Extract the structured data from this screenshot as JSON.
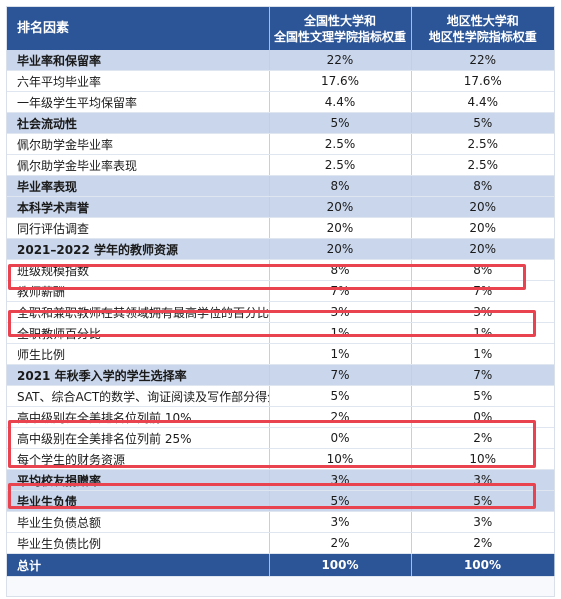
{
  "header": {
    "col1": "排名因素",
    "col2_line1": "全国性大学和",
    "col2_line2": "全国性文理学院指标权重",
    "col3_line1": "地区性大学和",
    "col3_line2": "地区性学院指标权重"
  },
  "rows": [
    {
      "name": "毕业率和保留率",
      "national": "22%",
      "regional": "22%",
      "kind": "section"
    },
    {
      "name": "六年平均毕业率",
      "national": "17.6%",
      "regional": "17.6%",
      "kind": "item"
    },
    {
      "name": "一年级学生平均保留率",
      "national": "4.4%",
      "regional": "4.4%",
      "kind": "item"
    },
    {
      "name": "社会流动性",
      "national": "5%",
      "regional": "5%",
      "kind": "section"
    },
    {
      "name": "佩尔助学金毕业率",
      "national": "2.5%",
      "regional": "2.5%",
      "kind": "item"
    },
    {
      "name": "佩尔助学金毕业率表现",
      "national": "2.5%",
      "regional": "2.5%",
      "kind": "item"
    },
    {
      "name": "毕业率表现",
      "national": "8%",
      "regional": "8%",
      "kind": "section"
    },
    {
      "name": "本科学术声誉",
      "national": "20%",
      "regional": "20%",
      "kind": "section"
    },
    {
      "name": "同行评估调查",
      "national": "20%",
      "regional": "20%",
      "kind": "item"
    },
    {
      "name": "2021–2022 学年的教师资源",
      "national": "20%",
      "regional": "20%",
      "kind": "section"
    },
    {
      "name": "班级规模指数",
      "national": "8%",
      "regional": "8%",
      "kind": "item"
    },
    {
      "name": "教师薪酬",
      "national": "7%",
      "regional": "7%",
      "kind": "item"
    },
    {
      "name": "全职和兼职教师在其领域拥有最高学位的百分比",
      "national": "3%",
      "regional": "3%",
      "kind": "item"
    },
    {
      "name": "全职教师百分比",
      "national": "1%",
      "regional": "1%",
      "kind": "item"
    },
    {
      "name": "师生比例",
      "national": "1%",
      "regional": "1%",
      "kind": "item"
    },
    {
      "name": "2021 年秋季入学的学生选择率",
      "national": "7%",
      "regional": "7%",
      "kind": "section"
    },
    {
      "name": "SAT、综合ACT的数学、询证阅读及写作部分得分",
      "national": "5%",
      "regional": "5%",
      "kind": "item"
    },
    {
      "name": "高中级别在全美排名位列前 10%",
      "national": "2%",
      "regional": "0%",
      "kind": "item"
    },
    {
      "name": "高中级别在全美排名位列前 25%",
      "national": "0%",
      "regional": "2%",
      "kind": "item"
    },
    {
      "name": "每个学生的财务资源",
      "national": "10%",
      "regional": "10%",
      "kind": "item"
    },
    {
      "name": "平均校友捐赠率",
      "national": "3%",
      "regional": "3%",
      "kind": "section"
    },
    {
      "name": "毕业生负债",
      "national": "5%",
      "regional": "5%",
      "kind": "section"
    },
    {
      "name": "毕业生负债总额",
      "national": "3%",
      "regional": "3%",
      "kind": "item"
    },
    {
      "name": "毕业生负债比例",
      "national": "2%",
      "regional": "2%",
      "kind": "item"
    }
  ],
  "total": {
    "name": "总计",
    "national": "100%",
    "regional": "100%"
  },
  "colors": {
    "header": "#2c5597",
    "section_row": "#c9d6eb",
    "highlight": "#e8434f"
  }
}
